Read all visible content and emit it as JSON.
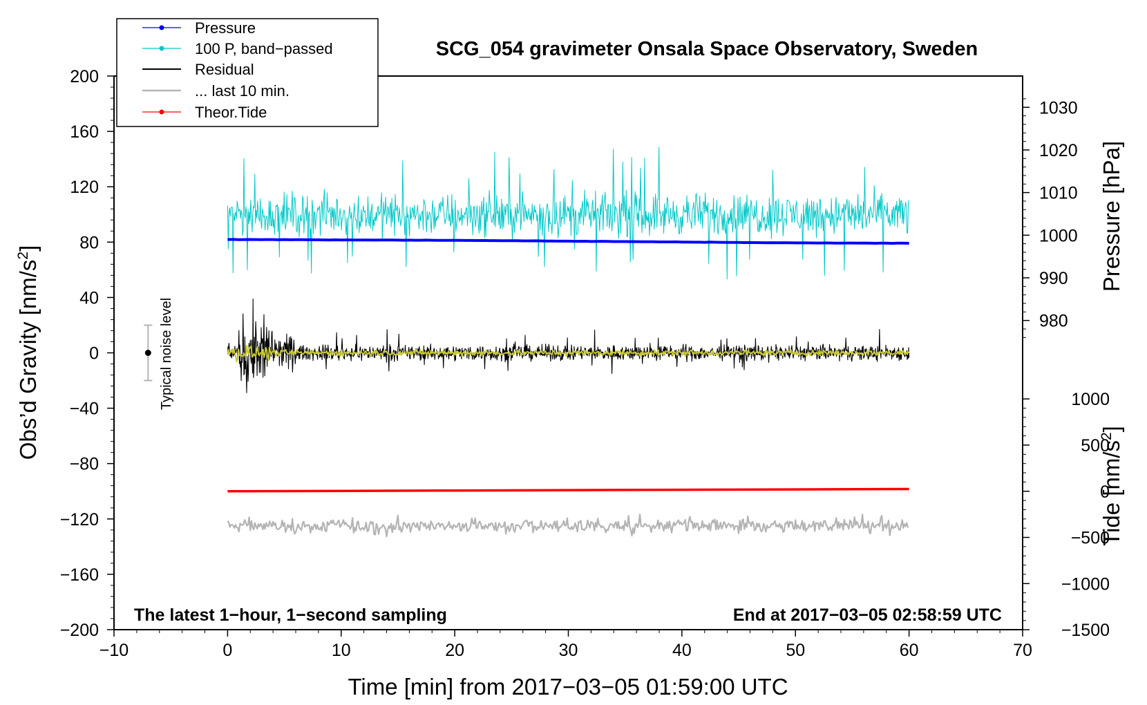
{
  "chart_data": {
    "type": "line",
    "title": "SCG_054 gravimeter Onsala Space Observatory, Sweden",
    "xlabel": "Time [min] from 2017−03−05 01:59:00 UTC",
    "ylabel": "Obs’d Gravity [nm/s²]",
    "ylabel_right_pressure": "Pressure [hPa]",
    "ylabel_right_tide": "Tide [nm/s²]",
    "xlim": [
      -10,
      70
    ],
    "ylim": [
      -200,
      200
    ],
    "x_ticks": [
      -10,
      0,
      10,
      20,
      30,
      40,
      50,
      60,
      70
    ],
    "x_tick_labels": [
      "−10",
      "0",
      "10",
      "20",
      "30",
      "40",
      "50",
      "60",
      "70"
    ],
    "y_ticks": [
      200,
      160,
      120,
      80,
      40,
      0,
      -40,
      -80,
      -120,
      -160,
      -200
    ],
    "y_tick_labels": [
      "200",
      "160",
      "120",
      "80",
      "40",
      "0",
      "−40",
      "−80",
      "−120",
      "−160",
      "−200"
    ],
    "pressure_axis": {
      "ticks": [
        1030,
        1020,
        1010,
        1000,
        990,
        980
      ],
      "tick_labels": [
        "1030",
        "1020",
        "1010",
        "1000",
        "990",
        "980"
      ],
      "gravity_at_1000": 85,
      "gravity_per_hpa": 3.08
    },
    "tide_axis": {
      "ticks": [
        1000,
        500,
        0,
        -500,
        -1000,
        -1500
      ],
      "tick_labels": [
        "1000",
        "500",
        "0",
        "−500",
        "−1000",
        "−1500"
      ],
      "gravity_at_0": -100,
      "gravity_per_unit": 0.0667
    },
    "legend": [
      {
        "label": "Pressure",
        "color": "#0000ff",
        "marker": true
      },
      {
        "label": "100 P, band−passed",
        "color": "#00c8c8",
        "marker": true
      },
      {
        "label": "Residual",
        "color": "#000000",
        "marker": false
      },
      {
        "label": "... last 10 min.",
        "color": "#b4b4b4",
        "marker": false
      },
      {
        "label": "Theor.Tide",
        "color": "#ff0000",
        "marker": true
      }
    ],
    "legend_placement": "top-left, above plot",
    "series": [
      {
        "name": "Pressure",
        "color": "#0000ff",
        "x": [
          0,
          10,
          20,
          30,
          40,
          50,
          60
        ],
        "values": [
          999.0,
          998.9,
          998.8,
          998.6,
          998.4,
          998.2,
          998.1
        ],
        "units": "hPa"
      },
      {
        "name": "100 P, band-passed",
        "color": "#00c8c8",
        "x_range": [
          0,
          60
        ],
        "center": 100,
        "amplitude": 20,
        "units": "nm/s²"
      },
      {
        "name": "Residual",
        "color": "#000000",
        "x_range": [
          0,
          60
        ],
        "center": 0,
        "amplitude": 8,
        "transient": {
          "x_range": [
            1,
            4
          ],
          "amplitude": 50
        },
        "units": "nm/s²"
      },
      {
        "name": "Yellow filtered residual",
        "color": "#c8c832",
        "x_range": [
          0,
          60
        ],
        "center": 0,
        "amplitude": 3
      },
      {
        "name": "... last 10 min.",
        "color": "#b4b4b4",
        "x_range": [
          0,
          60
        ],
        "center": -125,
        "amplitude": 7,
        "units": "nm/s²"
      },
      {
        "name": "Theor.Tide",
        "color": "#ff0000",
        "x": [
          0,
          20,
          40,
          60
        ],
        "values": [
          0,
          8,
          16,
          24
        ],
        "units": "nm/s²"
      }
    ],
    "typical_noise": {
      "x": -7,
      "center": 0,
      "half_range": 20,
      "label": "Typical noise level"
    },
    "annotations": {
      "bottom_left": "The latest 1−hour, 1−second sampling",
      "bottom_right": "End at 2017−03−05 02:58:59 UTC"
    }
  }
}
